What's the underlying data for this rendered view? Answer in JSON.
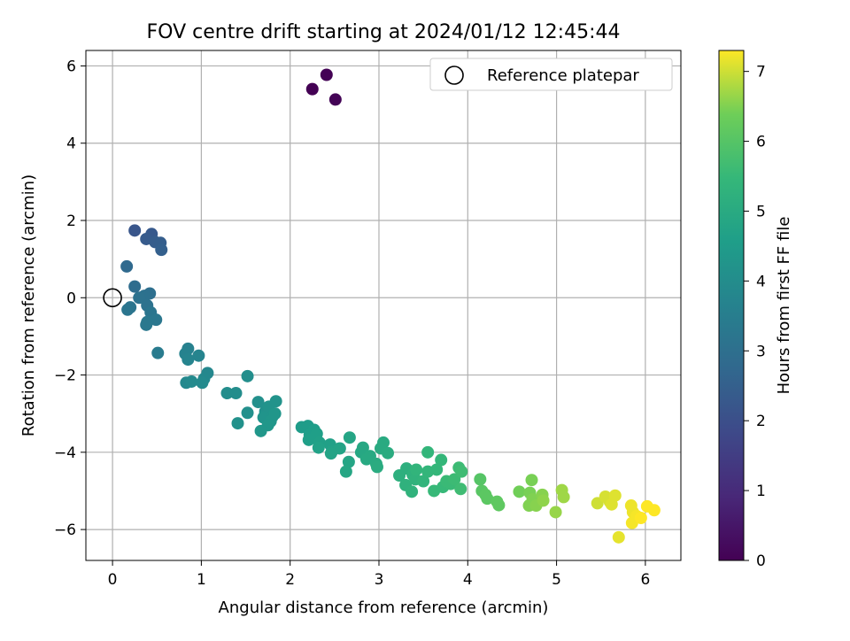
{
  "chart_data": {
    "type": "scatter",
    "title": "FOV centre drift starting at 2024/01/12 12:45:44",
    "xlabel": "Angular distance from reference (arcmin)",
    "ylabel": "Rotation from reference (arcmin)",
    "xlim": [
      -0.3,
      6.4
    ],
    "ylim": [
      -6.8,
      6.4
    ],
    "xticks": [
      0,
      1,
      2,
      3,
      4,
      5,
      6
    ],
    "yticks": [
      -6,
      -4,
      -2,
      0,
      2,
      4,
      6
    ],
    "grid": true,
    "legend": {
      "position": "top-right",
      "entries": [
        "Reference platepar"
      ]
    },
    "reference_point": {
      "label": "Reference platepar",
      "x": 0,
      "y": 0
    },
    "colorbar": {
      "label": "Hours from first FF file",
      "range": [
        0,
        7.3
      ],
      "ticks": [
        0,
        1,
        2,
        3,
        4,
        5,
        6,
        7
      ],
      "colormap": "viridis"
    },
    "series": [
      {
        "points": [
          [
            2.25,
            5.4,
            0.0
          ],
          [
            2.41,
            5.77,
            0.03
          ],
          [
            2.51,
            5.13,
            0.06
          ],
          [
            0.25,
            1.74,
            2.2
          ],
          [
            0.44,
            1.65,
            2.3
          ],
          [
            0.38,
            1.52,
            2.35
          ],
          [
            0.48,
            1.44,
            2.4
          ],
          [
            0.54,
            1.42,
            2.45
          ],
          [
            0.55,
            1.24,
            2.5
          ],
          [
            0.16,
            0.81,
            2.8
          ],
          [
            0.25,
            0.29,
            2.9
          ],
          [
            0.42,
            0.11,
            3.0
          ],
          [
            0.36,
            0.05,
            3.05
          ],
          [
            0.3,
            0.0,
            3.1
          ],
          [
            0.39,
            -0.2,
            3.1
          ],
          [
            0.2,
            -0.25,
            3.15
          ],
          [
            0.17,
            -0.31,
            3.2
          ],
          [
            0.43,
            -0.38,
            3.2
          ],
          [
            0.49,
            -0.57,
            3.25
          ],
          [
            0.39,
            -0.63,
            3.3
          ],
          [
            0.38,
            -0.7,
            3.3
          ],
          [
            0.51,
            -1.43,
            3.4
          ],
          [
            0.85,
            -1.32,
            3.6
          ],
          [
            0.82,
            -1.45,
            3.65
          ],
          [
            0.97,
            -1.5,
            3.7
          ],
          [
            0.85,
            -1.6,
            3.7
          ],
          [
            1.07,
            -1.95,
            3.8
          ],
          [
            1.03,
            -2.1,
            3.85
          ],
          [
            0.83,
            -2.2,
            3.85
          ],
          [
            0.89,
            -2.17,
            3.9
          ],
          [
            1.01,
            -2.2,
            3.9
          ],
          [
            1.29,
            -2.47,
            4.0
          ],
          [
            1.39,
            -2.47,
            4.0
          ],
          [
            1.52,
            -2.03,
            4.05
          ],
          [
            1.64,
            -2.7,
            4.1
          ],
          [
            1.52,
            -2.98,
            4.1
          ],
          [
            1.41,
            -3.25,
            4.15
          ],
          [
            1.72,
            -2.95,
            4.15
          ],
          [
            1.76,
            -2.82,
            4.2
          ],
          [
            1.84,
            -2.68,
            4.2
          ],
          [
            1.7,
            -3.1,
            4.25
          ],
          [
            1.8,
            -3.08,
            4.25
          ],
          [
            1.78,
            -3.2,
            4.3
          ],
          [
            1.83,
            -3.0,
            4.3
          ],
          [
            1.75,
            -3.3,
            4.35
          ],
          [
            1.67,
            -3.45,
            4.35
          ],
          [
            2.13,
            -3.35,
            4.5
          ],
          [
            2.2,
            -3.32,
            4.5
          ],
          [
            2.27,
            -3.42,
            4.55
          ],
          [
            2.22,
            -3.55,
            4.55
          ],
          [
            2.3,
            -3.52,
            4.6
          ],
          [
            2.21,
            -3.68,
            4.6
          ],
          [
            2.33,
            -3.75,
            4.65
          ],
          [
            2.45,
            -3.8,
            4.65
          ],
          [
            2.32,
            -3.88,
            4.7
          ],
          [
            2.47,
            -3.98,
            4.7
          ],
          [
            2.56,
            -3.9,
            4.75
          ],
          [
            2.46,
            -4.03,
            4.75
          ],
          [
            2.67,
            -3.62,
            4.8
          ],
          [
            2.66,
            -4.25,
            4.8
          ],
          [
            2.63,
            -4.5,
            4.85
          ],
          [
            2.82,
            -3.88,
            4.9
          ],
          [
            2.8,
            -4.0,
            4.9
          ],
          [
            2.9,
            -4.1,
            4.95
          ],
          [
            2.86,
            -4.18,
            4.95
          ],
          [
            2.97,
            -4.3,
            5.0
          ],
          [
            3.05,
            -3.75,
            5.0
          ],
          [
            3.02,
            -3.9,
            5.0
          ],
          [
            3.1,
            -4.02,
            5.05
          ],
          [
            2.98,
            -4.38,
            5.05
          ],
          [
            3.23,
            -4.6,
            5.2
          ],
          [
            3.31,
            -4.42,
            5.2
          ],
          [
            3.38,
            -4.58,
            5.25
          ],
          [
            3.3,
            -4.85,
            5.25
          ],
          [
            3.41,
            -4.7,
            5.3
          ],
          [
            3.37,
            -5.02,
            5.3
          ],
          [
            3.42,
            -4.45,
            5.35
          ],
          [
            3.5,
            -4.75,
            5.35
          ],
          [
            3.55,
            -4.0,
            5.4
          ],
          [
            3.55,
            -4.5,
            5.4
          ],
          [
            3.65,
            -4.45,
            5.45
          ],
          [
            3.7,
            -4.2,
            5.45
          ],
          [
            3.62,
            -5.0,
            5.5
          ],
          [
            3.72,
            -4.9,
            5.5
          ],
          [
            3.76,
            -4.75,
            5.55
          ],
          [
            3.81,
            -4.82,
            5.55
          ],
          [
            3.85,
            -4.7,
            5.6
          ],
          [
            3.9,
            -4.4,
            5.6
          ],
          [
            3.93,
            -4.5,
            5.65
          ],
          [
            3.92,
            -4.95,
            5.65
          ],
          [
            4.14,
            -4.7,
            6.0
          ],
          [
            4.16,
            -5.0,
            6.05
          ],
          [
            4.2,
            -5.1,
            6.1
          ],
          [
            4.22,
            -5.2,
            6.1
          ],
          [
            4.33,
            -5.28,
            6.15
          ],
          [
            4.35,
            -5.37,
            6.15
          ],
          [
            4.58,
            -5.02,
            6.4
          ],
          [
            4.72,
            -4.72,
            6.45
          ],
          [
            4.7,
            -5.05,
            6.45
          ],
          [
            4.73,
            -5.22,
            6.5
          ],
          [
            4.69,
            -5.38,
            6.5
          ],
          [
            4.77,
            -5.38,
            6.55
          ],
          [
            4.84,
            -5.1,
            6.55
          ],
          [
            4.85,
            -5.25,
            6.6
          ],
          [
            4.99,
            -5.55,
            6.65
          ],
          [
            5.06,
            -4.98,
            6.7
          ],
          [
            5.08,
            -5.16,
            6.7
          ],
          [
            5.46,
            -5.32,
            7.0
          ],
          [
            5.55,
            -5.15,
            7.05
          ],
          [
            5.6,
            -5.28,
            7.05
          ],
          [
            5.62,
            -5.35,
            7.1
          ],
          [
            5.66,
            -5.12,
            7.1
          ],
          [
            5.7,
            -6.2,
            7.15
          ],
          [
            5.84,
            -5.38,
            7.2
          ],
          [
            5.86,
            -5.55,
            7.2
          ],
          [
            5.9,
            -5.65,
            7.25
          ],
          [
            5.85,
            -5.83,
            7.25
          ],
          [
            5.95,
            -5.7,
            7.3
          ],
          [
            6.02,
            -5.4,
            7.3
          ],
          [
            6.1,
            -5.5,
            7.3
          ]
        ]
      }
    ]
  }
}
